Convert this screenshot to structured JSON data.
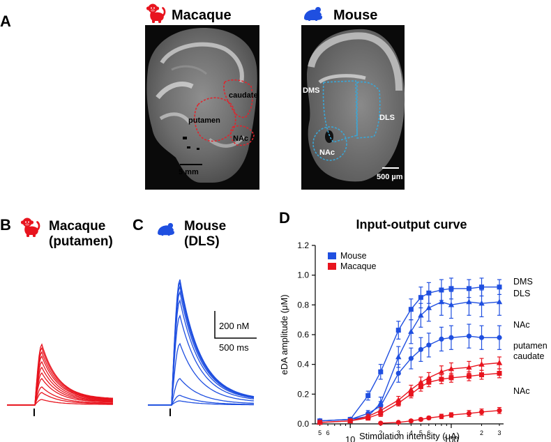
{
  "panels": {
    "A": {
      "label": "A",
      "macaque": {
        "title": "Macaque",
        "regions": [
          "caudate",
          "putamen",
          "NAc"
        ],
        "scale_bar": "5 mm"
      },
      "mouse": {
        "title": "Mouse",
        "regions": [
          "DMS",
          "DLS",
          "NAc"
        ],
        "scale_bar": "500 µm"
      }
    },
    "B": {
      "label": "B",
      "title_line1": "Macaque",
      "title_line2": "(putamen)"
    },
    "C": {
      "label": "C",
      "title_line1": "Mouse",
      "title_line2": "(DLS)",
      "scale_y": "200 nM",
      "scale_x": "500 ms"
    },
    "D": {
      "label": "D"
    }
  },
  "colors": {
    "mouse": "#1f4fe0",
    "macaque": "#e8141e",
    "roi_macaque": "#e0242c",
    "roi_mouse": "#3aa6d6"
  },
  "icons": {
    "macaque": "monkey-icon",
    "mouse": "mouse-icon"
  },
  "chart_data": {
    "type": "line",
    "title": "Input-output curve",
    "xlabel": "Stimulation intensity (μA)",
    "ylabel": "eDA amplitude (μM)",
    "xscale": "log",
    "xlim": [
      4.5,
      330
    ],
    "ylim": [
      0,
      1.2
    ],
    "yticks": [
      "0.0",
      "0.2",
      "0.4",
      "0.6",
      "0.8",
      "1.0",
      "1.2"
    ],
    "ytick_values": [
      0,
      0.2,
      0.4,
      0.6,
      0.8,
      1.0,
      1.2
    ],
    "xticks_major": [
      {
        "value": 10,
        "label": "10"
      },
      {
        "value": 100,
        "label": "100"
      }
    ],
    "xticks_minor": [
      {
        "value": 5,
        "label": "5"
      },
      {
        "value": 6,
        "label": "6"
      },
      {
        "value": 20,
        "label": "2"
      },
      {
        "value": 30,
        "label": "3"
      },
      {
        "value": 40,
        "label": "4"
      },
      {
        "value": 50,
        "label": "5"
      },
      {
        "value": 60,
        "label": "6"
      },
      {
        "value": 200,
        "label": "2"
      },
      {
        "value": 300,
        "label": "3"
      }
    ],
    "legend": [
      {
        "label": "Mouse",
        "color": "#1f4fe0"
      },
      {
        "label": "Macaque",
        "color": "#e8141e"
      }
    ],
    "x": [
      5,
      10,
      15,
      20,
      30,
      40,
      50,
      60,
      80,
      100,
      150,
      200,
      300
    ],
    "series": [
      {
        "name": "DMS",
        "color": "#1f4fe0",
        "marker": "square",
        "values": [
          0.02,
          0.03,
          0.19,
          0.35,
          0.63,
          0.77,
          0.85,
          0.88,
          0.9,
          0.91,
          0.91,
          0.92,
          0.92
        ],
        "err": [
          0.01,
          0.01,
          0.03,
          0.05,
          0.06,
          0.07,
          0.07,
          0.07,
          0.07,
          0.07,
          0.06,
          0.06,
          0.05
        ]
      },
      {
        "name": "DLS",
        "color": "#1f4fe0",
        "marker": "triangle",
        "values": [
          0.02,
          0.03,
          0.05,
          0.14,
          0.45,
          0.62,
          0.73,
          0.78,
          0.82,
          0.8,
          0.82,
          0.81,
          0.82
        ],
        "err": [
          0.01,
          0.01,
          0.02,
          0.04,
          0.07,
          0.08,
          0.08,
          0.09,
          0.09,
          0.09,
          0.09,
          0.09,
          0.09
        ]
      },
      {
        "name": "NAc",
        "color": "#1f4fe0",
        "marker": "circle",
        "values": [
          0.02,
          0.03,
          0.07,
          0.12,
          0.34,
          0.44,
          0.5,
          0.53,
          0.57,
          0.58,
          0.59,
          0.58,
          0.58
        ],
        "err": [
          0.01,
          0.01,
          0.02,
          0.03,
          0.06,
          0.07,
          0.08,
          0.08,
          0.08,
          0.08,
          0.08,
          0.08,
          0.08
        ]
      },
      {
        "name": "putamen",
        "color": "#e8141e",
        "marker": "triangle",
        "values": [
          0.01,
          0.02,
          0.05,
          0.09,
          0.16,
          0.23,
          0.28,
          0.31,
          0.35,
          0.37,
          0.38,
          0.4,
          0.41
        ],
        "err": [
          0.005,
          0.01,
          0.015,
          0.02,
          0.025,
          0.03,
          0.035,
          0.035,
          0.04,
          0.04,
          0.04,
          0.04,
          0.04
        ]
      },
      {
        "name": "caudate",
        "color": "#e8141e",
        "marker": "square",
        "values": [
          0.01,
          0.02,
          0.04,
          0.07,
          0.14,
          0.2,
          0.25,
          0.28,
          0.3,
          0.31,
          0.32,
          0.33,
          0.34
        ],
        "err": [
          0.005,
          0.01,
          0.015,
          0.02,
          0.02,
          0.025,
          0.03,
          0.03,
          0.03,
          0.03,
          0.03,
          0.03,
          0.03
        ]
      },
      {
        "name": "NAc",
        "color": "#e8141e",
        "marker": "circle",
        "values": [
          null,
          null,
          null,
          0.005,
          0.01,
          0.02,
          0.03,
          0.04,
          0.05,
          0.06,
          0.07,
          0.08,
          0.09
        ],
        "err": [
          null,
          null,
          null,
          0.005,
          0.005,
          0.01,
          0.01,
          0.01,
          0.015,
          0.015,
          0.02,
          0.02,
          0.02
        ]
      }
    ],
    "series_labels": [
      "DMS",
      "DLS",
      "NAc",
      "putamen",
      "caudate",
      "NAc"
    ]
  }
}
